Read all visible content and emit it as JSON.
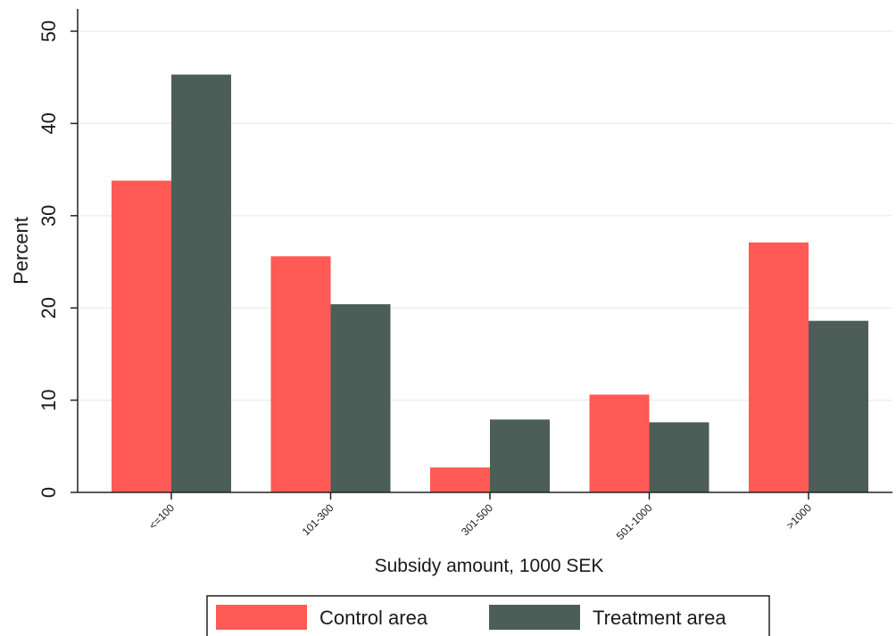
{
  "chart_data": {
    "type": "bar",
    "title": "",
    "xlabel": "Subsidy amount, 1000 SEK",
    "ylabel": "Percent",
    "ylim": [
      0,
      50
    ],
    "yticks": [
      0,
      10,
      20,
      30,
      40,
      50
    ],
    "categories": [
      "<=100",
      "101-300",
      "301-500",
      "501-1000",
      ">1000"
    ],
    "series": [
      {
        "name": "Control area",
        "color": "#ff5a55",
        "values": [
          33.8,
          25.6,
          2.7,
          10.6,
          27.1
        ]
      },
      {
        "name": "Treatment area",
        "color": "#4c5e57",
        "values": [
          45.3,
          20.4,
          7.9,
          7.6,
          18.6
        ]
      }
    ],
    "grid": true,
    "legend_position": "bottom"
  }
}
